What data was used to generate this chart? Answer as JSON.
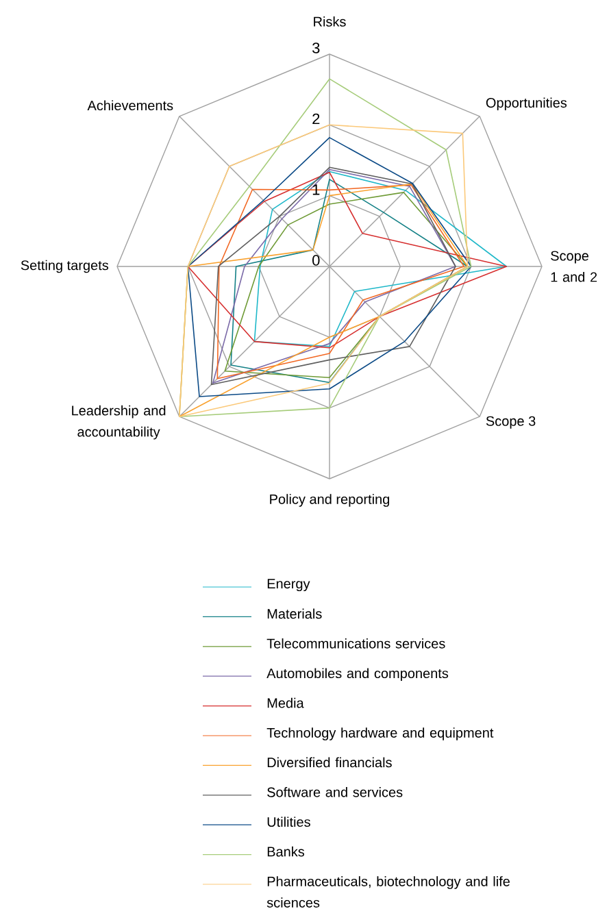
{
  "chart_data": {
    "type": "radar",
    "categories": [
      "Risks",
      "Opportunities",
      "Scope 1 and 2",
      "Scope 3",
      "Policy and reporting",
      "Leadership and accountability",
      "Setting targets",
      "Achievements"
    ],
    "series": [
      {
        "name": "Energy",
        "color": "#1fb8c9",
        "values": [
          1.34,
          1.52,
          2.5,
          0.5,
          1.13,
          1.5,
          0.98,
          1.14
        ]
      },
      {
        "name": "Materials",
        "color": "#138086",
        "values": [
          1.23,
          1.08,
          1.95,
          1.0,
          1.64,
          1.97,
          1.32,
          0.33
        ]
      },
      {
        "name": "Telecommunications services",
        "color": "#6e9a35",
        "values": [
          0.88,
          1.48,
          1.95,
          1.0,
          1.57,
          2.09,
          1.0,
          0.83
        ]
      },
      {
        "name": "Automobiles and components",
        "color": "#7b6aa8",
        "values": [
          1.37,
          1.6,
          1.78,
          0.71,
          1.09,
          2.33,
          1.2,
          0.95
        ]
      },
      {
        "name": "Media",
        "color": "#d62f2f",
        "values": [
          1.33,
          0.66,
          2.5,
          1.0,
          1.15,
          1.5,
          2.0,
          1.3
        ]
      },
      {
        "name": "Technology hardware and equipment",
        "color": "#f26722",
        "values": [
          1.08,
          1.63,
          1.9,
          0.67,
          1.23,
          2.24,
          1.56,
          1.54
        ]
      },
      {
        "name": "Diversified financials",
        "color": "#f9a12e",
        "values": [
          1.0,
          1.65,
          1.95,
          1.0,
          1.0,
          3.0,
          2.0,
          0.33
        ]
      },
      {
        "name": "Software and services",
        "color": "#5f5f5f",
        "values": [
          1.4,
          1.65,
          1.78,
          1.6,
          1.32,
          2.36,
          1.57,
          1.0
        ]
      },
      {
        "name": "Utilities",
        "color": "#0b4a86",
        "values": [
          1.82,
          1.66,
          2.0,
          1.5,
          1.73,
          2.6,
          2.0,
          1.32
        ]
      },
      {
        "name": "Banks",
        "color": "#a6cc7a",
        "values": [
          2.65,
          2.33,
          2.0,
          1.0,
          2.0,
          3.0,
          2.0,
          1.6
        ]
      },
      {
        "name": "Pharmaceuticals, biotechnology and life sciences",
        "color": "#fbc97a",
        "values": [
          2.0,
          2.66,
          1.95,
          1.0,
          1.65,
          3.0,
          2.0,
          2.0
        ]
      }
    ],
    "ylim": [
      0,
      3
    ],
    "yticks": [
      0,
      1,
      2,
      3
    ],
    "grid": true,
    "legend": "bottom"
  }
}
